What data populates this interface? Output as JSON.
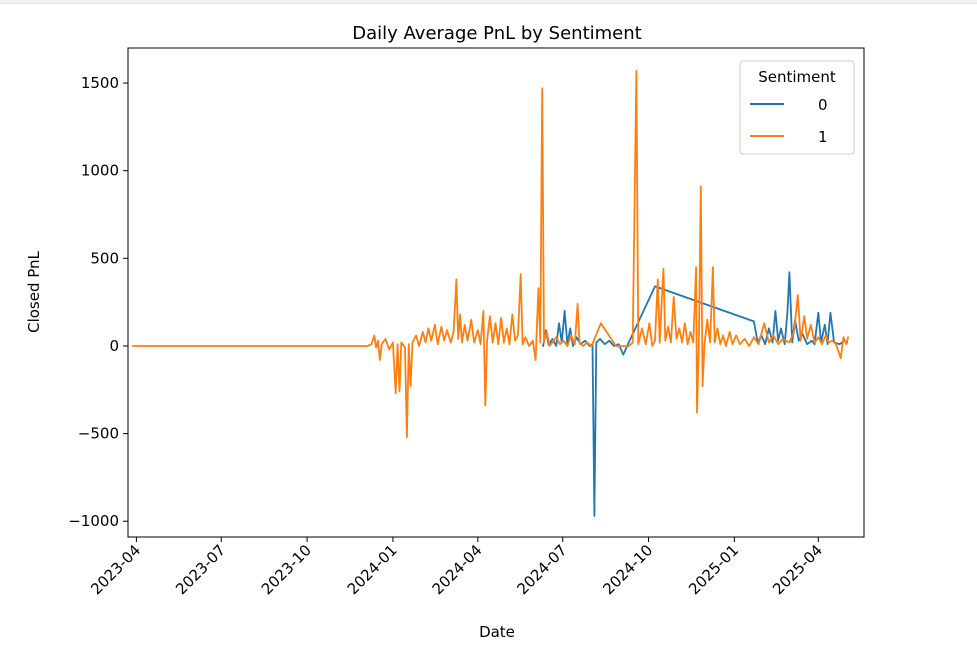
{
  "chart_data": {
    "type": "line",
    "title": "Daily Average PnL by Sentiment",
    "xlabel": "Date",
    "ylabel": "Closed PnL",
    "xlim": [
      "2023-03-23",
      "2025-05-20"
    ],
    "ylim": [
      -1090,
      1700
    ],
    "x_ticks": [
      "2023-04",
      "2023-07",
      "2023-10",
      "2024-01",
      "2024-04",
      "2024-07",
      "2024-10",
      "2025-01",
      "2025-04"
    ],
    "y_ticks": [
      -1000,
      -500,
      0,
      500,
      1000,
      1500
    ],
    "y_tick_labels": [
      "−1000",
      "−500",
      "0",
      "500",
      "1000",
      "1500"
    ],
    "grid": false,
    "legend": {
      "title": "Sentiment",
      "position": "top-right"
    },
    "series": [
      {
        "name": "0",
        "color": "#1f77b4",
        "points": [
          [
            "2024-06-10",
            0
          ],
          [
            "2024-06-13",
            90
          ],
          [
            "2024-06-16",
            5
          ],
          [
            "2024-06-20",
            40
          ],
          [
            "2024-06-24",
            0
          ],
          [
            "2024-06-27",
            130
          ],
          [
            "2024-06-30",
            20
          ],
          [
            "2024-07-03",
            200
          ],
          [
            "2024-07-06",
            10
          ],
          [
            "2024-07-09",
            100
          ],
          [
            "2024-07-12",
            0
          ],
          [
            "2024-07-16",
            50
          ],
          [
            "2024-07-20",
            10
          ],
          [
            "2024-07-25",
            30
          ],
          [
            "2024-07-30",
            0
          ],
          [
            "2024-08-02",
            10
          ],
          [
            "2024-08-04",
            -970
          ],
          [
            "2024-08-06",
            20
          ],
          [
            "2024-08-10",
            40
          ],
          [
            "2024-08-15",
            10
          ],
          [
            "2024-08-20",
            30
          ],
          [
            "2024-08-25",
            0
          ],
          [
            "2024-08-30",
            10
          ],
          [
            "2024-09-04",
            -50
          ],
          [
            "2024-09-08",
            0
          ],
          [
            "2024-10-08",
            340
          ],
          [
            "2025-01-22",
            140
          ],
          [
            "2025-01-26",
            20
          ],
          [
            "2025-01-30",
            60
          ],
          [
            "2025-02-03",
            10
          ],
          [
            "2025-02-07",
            100
          ],
          [
            "2025-02-11",
            20
          ],
          [
            "2025-02-14",
            200
          ],
          [
            "2025-02-17",
            30
          ],
          [
            "2025-02-20",
            100
          ],
          [
            "2025-02-24",
            10
          ],
          [
            "2025-02-27",
            200
          ],
          [
            "2025-03-01",
            420
          ],
          [
            "2025-03-04",
            20
          ],
          [
            "2025-03-07",
            150
          ],
          [
            "2025-03-11",
            30
          ],
          [
            "2025-03-15",
            70
          ],
          [
            "2025-03-20",
            10
          ],
          [
            "2025-03-25",
            30
          ],
          [
            "2025-03-28",
            10
          ],
          [
            "2025-04-01",
            190
          ],
          [
            "2025-04-04",
            20
          ],
          [
            "2025-04-08",
            120
          ],
          [
            "2025-04-11",
            10
          ],
          [
            "2025-04-14",
            190
          ],
          [
            "2025-04-18",
            20
          ],
          [
            "2025-04-24",
            10
          ],
          [
            "2025-04-29",
            30
          ],
          [
            "2025-05-02",
            20
          ]
        ]
      },
      {
        "name": "1",
        "color": "#ff7f0e",
        "points": [
          [
            "2023-03-28",
            0
          ],
          [
            "2023-12-05",
            0
          ],
          [
            "2023-12-09",
            10
          ],
          [
            "2023-12-12",
            60
          ],
          [
            "2023-12-14",
            -10
          ],
          [
            "2023-12-16",
            30
          ],
          [
            "2023-12-18",
            -80
          ],
          [
            "2023-12-20",
            10
          ],
          [
            "2023-12-24",
            40
          ],
          [
            "2023-12-28",
            -20
          ],
          [
            "2024-01-01",
            20
          ],
          [
            "2024-01-04",
            -270
          ],
          [
            "2024-01-06",
            10
          ],
          [
            "2024-01-08",
            -260
          ],
          [
            "2024-01-10",
            20
          ],
          [
            "2024-01-14",
            -10
          ],
          [
            "2024-01-16",
            -520
          ],
          [
            "2024-01-18",
            10
          ],
          [
            "2024-01-20",
            -230
          ],
          [
            "2024-01-22",
            20
          ],
          [
            "2024-01-26",
            60
          ],
          [
            "2024-01-29",
            0
          ],
          [
            "2024-02-02",
            80
          ],
          [
            "2024-02-05",
            20
          ],
          [
            "2024-02-08",
            100
          ],
          [
            "2024-02-11",
            30
          ],
          [
            "2024-02-15",
            120
          ],
          [
            "2024-02-18",
            10
          ],
          [
            "2024-02-22",
            110
          ],
          [
            "2024-02-25",
            30
          ],
          [
            "2024-02-28",
            90
          ],
          [
            "2024-03-03",
            20
          ],
          [
            "2024-03-06",
            80
          ],
          [
            "2024-03-09",
            380
          ],
          [
            "2024-03-11",
            40
          ],
          [
            "2024-03-13",
            180
          ],
          [
            "2024-03-15",
            20
          ],
          [
            "2024-03-18",
            120
          ],
          [
            "2024-03-21",
            30
          ],
          [
            "2024-03-25",
            150
          ],
          [
            "2024-03-28",
            20
          ],
          [
            "2024-04-01",
            90
          ],
          [
            "2024-04-04",
            10
          ],
          [
            "2024-04-07",
            200
          ],
          [
            "2024-04-09",
            -340
          ],
          [
            "2024-04-11",
            30
          ],
          [
            "2024-04-14",
            170
          ],
          [
            "2024-04-17",
            20
          ],
          [
            "2024-04-20",
            130
          ],
          [
            "2024-04-23",
            10
          ],
          [
            "2024-04-26",
            160
          ],
          [
            "2024-04-29",
            20
          ],
          [
            "2024-05-02",
            100
          ],
          [
            "2024-05-05",
            10
          ],
          [
            "2024-05-08",
            180
          ],
          [
            "2024-05-11",
            30
          ],
          [
            "2024-05-14",
            60
          ],
          [
            "2024-05-17",
            410
          ],
          [
            "2024-05-19",
            10
          ],
          [
            "2024-05-22",
            50
          ],
          [
            "2024-05-26",
            0
          ],
          [
            "2024-05-30",
            30
          ],
          [
            "2024-06-02",
            -80
          ],
          [
            "2024-06-05",
            330
          ],
          [
            "2024-06-07",
            20
          ],
          [
            "2024-06-09",
            1470
          ],
          [
            "2024-06-11",
            20
          ],
          [
            "2024-06-14",
            80
          ],
          [
            "2024-06-17",
            0
          ],
          [
            "2024-06-20",
            20
          ],
          [
            "2024-06-24",
            50
          ],
          [
            "2024-06-28",
            10
          ],
          [
            "2024-07-02",
            30
          ],
          [
            "2024-07-06",
            0
          ],
          [
            "2024-07-10",
            60
          ],
          [
            "2024-07-14",
            10
          ],
          [
            "2024-07-17",
            240
          ],
          [
            "2024-07-19",
            20
          ],
          [
            "2024-07-23",
            0
          ],
          [
            "2024-07-27",
            20
          ],
          [
            "2024-08-01",
            0
          ],
          [
            "2024-08-11",
            130
          ],
          [
            "2024-08-27",
            0
          ],
          [
            "2024-09-10",
            0
          ],
          [
            "2024-09-14",
            20
          ],
          [
            "2024-09-18",
            1570
          ],
          [
            "2024-09-20",
            10
          ],
          [
            "2024-09-24",
            100
          ],
          [
            "2024-09-28",
            10
          ],
          [
            "2024-10-02",
            130
          ],
          [
            "2024-10-05",
            0
          ],
          [
            "2024-10-08",
            30
          ],
          [
            "2024-10-11",
            380
          ],
          [
            "2024-10-13",
            20
          ],
          [
            "2024-10-17",
            440
          ],
          [
            "2024-10-19",
            30
          ],
          [
            "2024-10-22",
            110
          ],
          [
            "2024-10-25",
            20
          ],
          [
            "2024-10-28",
            280
          ],
          [
            "2024-10-31",
            40
          ],
          [
            "2024-11-03",
            100
          ],
          [
            "2024-11-06",
            20
          ],
          [
            "2024-11-09",
            130
          ],
          [
            "2024-11-12",
            10
          ],
          [
            "2024-11-15",
            80
          ],
          [
            "2024-11-18",
            20
          ],
          [
            "2024-11-21",
            450
          ],
          [
            "2024-11-22",
            -380
          ],
          [
            "2024-11-24",
            20
          ],
          [
            "2024-11-26",
            910
          ],
          [
            "2024-11-28",
            -230
          ],
          [
            "2024-11-30",
            10
          ],
          [
            "2024-12-03",
            150
          ],
          [
            "2024-12-06",
            20
          ],
          [
            "2024-12-09",
            450
          ],
          [
            "2024-12-11",
            20
          ],
          [
            "2024-12-14",
            100
          ],
          [
            "2024-12-17",
            10
          ],
          [
            "2024-12-20",
            60
          ],
          [
            "2024-12-23",
            0
          ],
          [
            "2024-12-27",
            80
          ],
          [
            "2024-12-30",
            10
          ],
          [
            "2025-01-03",
            60
          ],
          [
            "2025-01-07",
            10
          ],
          [
            "2025-01-12",
            40
          ],
          [
            "2025-01-17",
            0
          ],
          [
            "2025-01-22",
            50
          ],
          [
            "2025-01-27",
            10
          ],
          [
            "2025-02-02",
            130
          ],
          [
            "2025-02-07",
            20
          ],
          [
            "2025-02-12",
            60
          ],
          [
            "2025-02-17",
            10
          ],
          [
            "2025-02-22",
            40
          ],
          [
            "2025-03-01",
            20
          ],
          [
            "2025-03-06",
            80
          ],
          [
            "2025-03-10",
            290
          ],
          [
            "2025-03-13",
            30
          ],
          [
            "2025-03-17",
            170
          ],
          [
            "2025-03-20",
            40
          ],
          [
            "2025-03-24",
            120
          ],
          [
            "2025-03-28",
            20
          ],
          [
            "2025-04-01",
            50
          ],
          [
            "2025-04-05",
            10
          ],
          [
            "2025-04-09",
            60
          ],
          [
            "2025-04-12",
            20
          ],
          [
            "2025-04-16",
            30
          ],
          [
            "2025-04-20",
            10
          ],
          [
            "2025-04-25",
            -70
          ],
          [
            "2025-04-28",
            50
          ],
          [
            "2025-05-01",
            10
          ],
          [
            "2025-05-03",
            50
          ]
        ]
      }
    ]
  }
}
